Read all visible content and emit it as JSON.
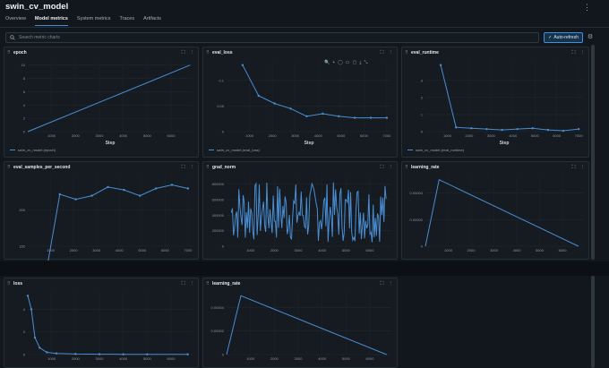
{
  "header": {
    "title": "swin_cv_model",
    "menu_icon": "kebab-icon"
  },
  "tabs": [
    {
      "label": "Overview",
      "active": false
    },
    {
      "label": "Model metrics",
      "active": true
    },
    {
      "label": "System metrics",
      "active": false
    },
    {
      "label": "Traces",
      "active": false
    },
    {
      "label": "Artifacts",
      "active": false
    }
  ],
  "search": {
    "placeholder": "Search metric charts",
    "value": ""
  },
  "toolbar": {
    "auto_refresh_label": "Auto-refresh"
  },
  "colors": {
    "series": "#4a8ed4",
    "accent": "#3f8fdc",
    "background": "#11171c"
  },
  "charts": [
    {
      "title": "epoch",
      "type": "line",
      "x": [
        0,
        6800
      ],
      "y": [
        0,
        10
      ],
      "x_ticks": [
        "1000",
        "2000",
        "3000",
        "4000",
        "5000",
        "6000"
      ],
      "y_ticks": [
        "0",
        "2",
        "4",
        "6",
        "8",
        "10"
      ],
      "xlabel": "Step",
      "legend": "swin_cv_model (epoch)"
    },
    {
      "title": "eval_loss",
      "type": "line",
      "x": [
        700,
        1400,
        2100,
        2800,
        3500,
        4200,
        4900,
        5600,
        6300,
        7000
      ],
      "y": [
        0.13,
        0.07,
        0.055,
        0.045,
        0.03,
        0.035,
        0.03,
        0.027,
        0.027,
        0.027
      ],
      "x_ticks": [
        "1000",
        "2000",
        "3000",
        "4000",
        "5000",
        "6000",
        "7000"
      ],
      "y_ticks": [
        "0",
        "0.05",
        "0.1"
      ],
      "xlabel": "Step",
      "legend": "swin_cv_model (eval_loss)"
    },
    {
      "title": "eval_runtime",
      "type": "line",
      "x": [
        700,
        1400,
        2100,
        2800,
        3500,
        4200,
        4900,
        5600,
        6300,
        7000
      ],
      "y": [
        3.9,
        0.25,
        0.2,
        0.15,
        0.1,
        0.15,
        0.2,
        0.1,
        0.05,
        0.15
      ],
      "x_ticks": [
        "1000",
        "2000",
        "3000",
        "4000",
        "5000",
        "6000",
        "7000"
      ],
      "y_ticks": [
        "0",
        "1",
        "2",
        "3"
      ],
      "xlabel": "Step",
      "legend": "swin_cv_model (eval_runtime)"
    },
    {
      "title": "eval_samples_per_second",
      "type": "line",
      "x": [
        700,
        1400,
        2100,
        2800,
        3500,
        4200,
        4900,
        5600,
        6300,
        7000
      ],
      "y": [
        95,
        222,
        215,
        220,
        232,
        228,
        220,
        230,
        235,
        230
      ],
      "x_ticks": [
        "1000",
        "2000",
        "3000",
        "4000",
        "5000",
        "6000",
        "7000"
      ],
      "y_ticks": [
        "150",
        "200"
      ],
      "xlabel": "",
      "legend": ""
    },
    {
      "title": "grad_norm",
      "type": "line",
      "noisy": true,
      "x_ticks": [
        "1000",
        "2000",
        "3000",
        "4000",
        "5000",
        "6000"
      ],
      "y_ticks": [
        "0",
        "200000",
        "400000",
        "600000",
        "800000"
      ],
      "xlabel": "",
      "legend": ""
    },
    {
      "title": "learning_rate",
      "type": "line",
      "x": [
        0,
        600,
        6700
      ],
      "y": [
        0.0,
        5e-05,
        0.0
      ],
      "x_ticks": [
        "1000",
        "2000",
        "3000",
        "4000",
        "5000",
        "6000"
      ],
      "y_ticks": [
        "0",
        "0.00002",
        "0.00004"
      ],
      "xlabel": "",
      "legend": ""
    },
    {
      "title": "loss",
      "type": "line",
      "x": [
        0,
        150,
        300,
        500,
        800,
        1200,
        2000,
        3000,
        4000,
        5000,
        6700
      ],
      "y": [
        5.2,
        4.0,
        1.5,
        0.6,
        0.2,
        0.1,
        0.05,
        0.03,
        0.02,
        0.02,
        0.02
      ],
      "x_ticks": [
        "1000",
        "2000",
        "3000",
        "4000",
        "5000",
        "6000"
      ],
      "y_ticks": [
        "0",
        "2",
        "4"
      ],
      "xlabel": "",
      "legend": ""
    },
    {
      "title": "learning_rate",
      "type": "line",
      "x": [
        0,
        600,
        6700
      ],
      "y": [
        0.0,
        5e-05,
        0.0
      ],
      "x_ticks": [
        "1000",
        "2000",
        "3000",
        "4000",
        "5000",
        "6000"
      ],
      "y_ticks": [
        "0",
        "0.00002",
        "0.00004"
      ],
      "xlabel": "",
      "legend": ""
    }
  ]
}
